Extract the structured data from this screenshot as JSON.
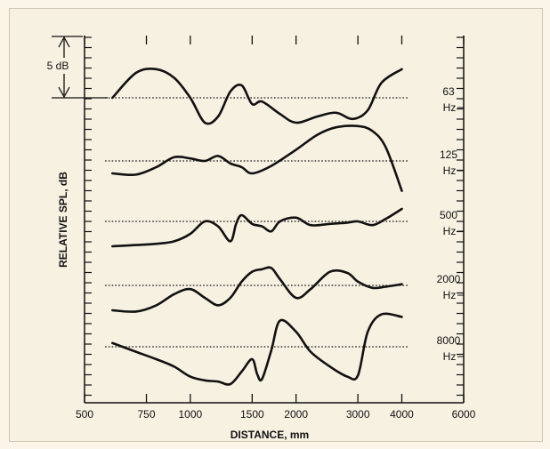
{
  "chart_data": {
    "type": "line",
    "title": "",
    "xlabel": "DISTANCE, mm",
    "ylabel": "RELATIVE SPL, dB",
    "x_scale": "log",
    "xlim": [
      500,
      6000
    ],
    "x_ticks": [
      500,
      750,
      1000,
      1500,
      2000,
      3000,
      4000,
      6000
    ],
    "x_tick_labels": [
      "500",
      "750",
      "1000",
      "1500",
      "2000",
      "3000",
      "4000",
      "6000"
    ],
    "scale_bar_label": "5 dB",
    "scale_bar_db": 5,
    "grid": false,
    "series": [
      {
        "name": "63 Hz",
        "label_line1": "63",
        "label_line2": "Hz",
        "x": [
          600,
          700,
          800,
          900,
          1000,
          1100,
          1200,
          1300,
          1400,
          1500,
          1600,
          1800,
          2000,
          2300,
          2600,
          2900,
          3200,
          3500,
          4000
        ],
        "y": [
          0.0,
          2.0,
          2.3,
          1.6,
          0.0,
          -2.0,
          -1.5,
          0.5,
          1.0,
          -0.5,
          -0.3,
          -1.3,
          -2.0,
          -1.5,
          -1.2,
          -1.7,
          -1.0,
          1.2,
          2.3
        ]
      },
      {
        "name": "125 Hz",
        "label_line1": "125",
        "label_line2": "Hz",
        "x": [
          600,
          700,
          800,
          900,
          1000,
          1100,
          1200,
          1300,
          1400,
          1500,
          1700,
          2000,
          2300,
          2600,
          3000,
          3300,
          3600,
          4000
        ],
        "y": [
          -1.0,
          -1.1,
          -0.5,
          0.3,
          0.2,
          0.0,
          0.4,
          -0.2,
          -0.5,
          -1.0,
          -0.4,
          0.9,
          2.1,
          2.7,
          2.8,
          2.4,
          1.1,
          -2.4
        ]
      },
      {
        "name": "500 Hz",
        "label_line1": "500",
        "label_line2": "Hz",
        "x": [
          600,
          700,
          800,
          900,
          1000,
          1100,
          1200,
          1300,
          1350,
          1400,
          1500,
          1600,
          1700,
          1800,
          2000,
          2200,
          2500,
          2800,
          3000,
          3300,
          3600,
          4000
        ],
        "y": [
          -2.0,
          -1.9,
          -1.8,
          -1.6,
          -1.0,
          0.0,
          -0.4,
          -1.6,
          -0.2,
          0.5,
          -0.2,
          -0.4,
          -0.8,
          0.0,
          0.3,
          -0.3,
          -0.2,
          -0.1,
          0.0,
          -0.3,
          0.2,
          1.0
        ]
      },
      {
        "name": "2000 Hz",
        "label_line1": "2000",
        "label_line2": "Hz",
        "x": [
          600,
          700,
          800,
          900,
          1000,
          1100,
          1200,
          1300,
          1400,
          1500,
          1600,
          1700,
          1800,
          2000,
          2200,
          2500,
          2800,
          3000,
          3300,
          3600,
          4000
        ],
        "y": [
          -2.0,
          -2.1,
          -1.6,
          -0.7,
          -0.3,
          -1.0,
          -1.6,
          -1.0,
          0.3,
          1.1,
          1.3,
          1.4,
          0.5,
          -1.0,
          -0.3,
          1.1,
          1.0,
          0.3,
          -0.2,
          -0.1,
          0.1
        ]
      },
      {
        "name": "8000 Hz",
        "label_line1": "8000",
        "label_line2": "Hz",
        "x": [
          600,
          700,
          800,
          900,
          1000,
          1100,
          1200,
          1300,
          1400,
          1500,
          1550,
          1600,
          1700,
          1800,
          2000,
          2200,
          2500,
          2800,
          3000,
          3200,
          3500,
          4000
        ],
        "y": [
          0.3,
          -0.4,
          -1.0,
          -1.6,
          -2.4,
          -2.7,
          -2.8,
          -3.0,
          -2.0,
          -1.0,
          -2.2,
          -2.6,
          -0.3,
          2.1,
          1.2,
          -0.4,
          -1.6,
          -2.4,
          -2.3,
          1.2,
          2.6,
          2.4
        ]
      }
    ]
  }
}
